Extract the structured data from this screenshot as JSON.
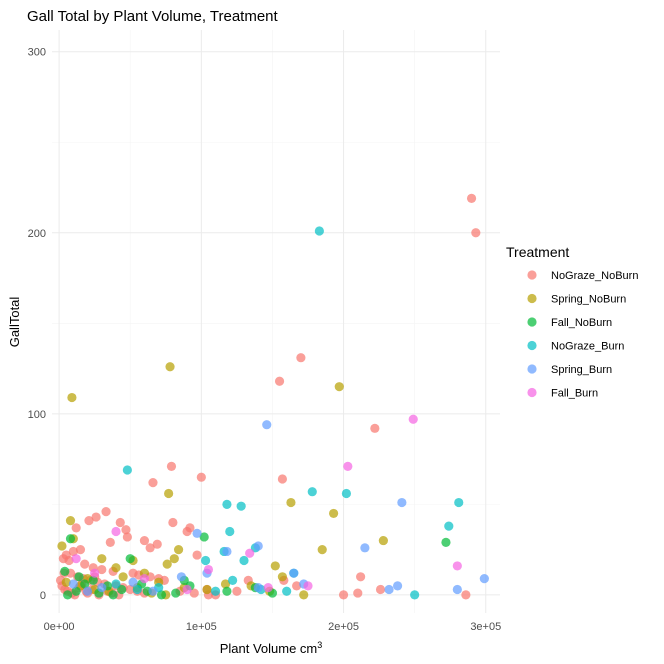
{
  "chart_data": {
    "type": "scatter",
    "title": "Gall Total by Plant Volume, Treatment",
    "xlabel": "Plant Volume cm",
    "xlabel_superscript": "3",
    "ylabel": "GallTotal",
    "xlim": [
      -5000,
      310000
    ],
    "ylim": [
      -10,
      312
    ],
    "x_ticks": [
      0,
      100000,
      200000,
      300000
    ],
    "x_tick_labels": [
      "0e+00",
      "1e+05",
      "2e+05",
      "3e+05"
    ],
    "y_ticks": [
      0,
      100,
      200,
      300
    ],
    "y_tick_labels": [
      "0",
      "100",
      "200",
      "300"
    ],
    "grid": true,
    "legend": {
      "title": "Treatment",
      "position": "right"
    },
    "series": [
      {
        "name": "NoGraze_NoBurn",
        "color": "#F8766D",
        "points": [
          [
            290000,
            219
          ],
          [
            293000,
            200
          ],
          [
            170000,
            131
          ],
          [
            155000,
            118
          ],
          [
            222000,
            92
          ],
          [
            79000,
            71
          ],
          [
            100000,
            65
          ],
          [
            157000,
            64
          ],
          [
            66000,
            62
          ],
          [
            33000,
            46
          ],
          [
            43000,
            40
          ],
          [
            47000,
            36
          ],
          [
            80000,
            40
          ],
          [
            90000,
            35
          ],
          [
            92000,
            37
          ],
          [
            26000,
            43
          ],
          [
            21000,
            41
          ],
          [
            12000,
            37
          ],
          [
            48000,
            32
          ],
          [
            60000,
            30
          ],
          [
            36000,
            29
          ],
          [
            15000,
            25
          ],
          [
            10000,
            24
          ],
          [
            5000,
            22
          ],
          [
            3000,
            20
          ],
          [
            7000,
            19
          ],
          [
            18000,
            17
          ],
          [
            24000,
            15
          ],
          [
            30000,
            14
          ],
          [
            38000,
            13
          ],
          [
            52000,
            12
          ],
          [
            56000,
            11
          ],
          [
            64000,
            10
          ],
          [
            70000,
            9
          ],
          [
            74000,
            8
          ],
          [
            8000,
            12
          ],
          [
            13000,
            10
          ],
          [
            17000,
            9
          ],
          [
            22000,
            8
          ],
          [
            27000,
            7
          ],
          [
            32000,
            6
          ],
          [
            40000,
            5
          ],
          [
            45000,
            4
          ],
          [
            50000,
            3
          ],
          [
            55000,
            2
          ],
          [
            60000,
            1
          ],
          [
            2000,
            5
          ],
          [
            4000,
            3
          ],
          [
            6000,
            2
          ],
          [
            9000,
            1
          ],
          [
            11000,
            0
          ],
          [
            14000,
            4
          ],
          [
            16000,
            6
          ],
          [
            19000,
            2
          ],
          [
            20000,
            1
          ],
          [
            23000,
            3
          ],
          [
            28000,
            0
          ],
          [
            34000,
            2
          ],
          [
            37000,
            1
          ],
          [
            42000,
            0
          ],
          [
            85000,
            2
          ],
          [
            95000,
            1
          ],
          [
            104000,
            3
          ],
          [
            110000,
            0
          ],
          [
            125000,
            2
          ],
          [
            133000,
            8
          ],
          [
            158000,
            8
          ],
          [
            167000,
            5
          ],
          [
            200000,
            0
          ],
          [
            212000,
            10
          ],
          [
            210000,
            1
          ],
          [
            226000,
            3
          ],
          [
            286000,
            0
          ],
          [
            64000,
            26
          ],
          [
            69000,
            28
          ],
          [
            97000,
            22
          ],
          [
            105000,
            0
          ],
          [
            1000,
            8
          ],
          [
            3500,
            12
          ],
          [
            25000,
            10
          ]
        ]
      },
      {
        "name": "Spring_NoBurn",
        "color": "#B79F00",
        "points": [
          [
            9000,
            109
          ],
          [
            78000,
            126
          ],
          [
            197000,
            115
          ],
          [
            77000,
            56
          ],
          [
            193000,
            45
          ],
          [
            163000,
            51
          ],
          [
            185000,
            25
          ],
          [
            228000,
            30
          ],
          [
            10000,
            31
          ],
          [
            8000,
            41
          ],
          [
            81000,
            20
          ],
          [
            84000,
            25
          ],
          [
            76000,
            17
          ],
          [
            152000,
            16
          ],
          [
            157000,
            10
          ],
          [
            2000,
            27
          ],
          [
            52000,
            19
          ],
          [
            60000,
            12
          ],
          [
            70000,
            7
          ],
          [
            88000,
            4
          ],
          [
            104000,
            3
          ],
          [
            117000,
            6
          ],
          [
            135000,
            5
          ],
          [
            148000,
            2
          ],
          [
            172000,
            0
          ],
          [
            30000,
            20
          ],
          [
            40000,
            15
          ],
          [
            45000,
            10
          ],
          [
            20000,
            9
          ],
          [
            5000,
            7
          ],
          [
            15000,
            5
          ],
          [
            25000,
            3
          ],
          [
            35000,
            2
          ],
          [
            55000,
            4
          ],
          [
            65000,
            1
          ],
          [
            75000,
            0
          ]
        ]
      },
      {
        "name": "Fall_NoBurn",
        "color": "#00BA38",
        "points": [
          [
            272000,
            29
          ],
          [
            102000,
            32
          ],
          [
            8000,
            31
          ],
          [
            50000,
            20
          ],
          [
            4000,
            13
          ],
          [
            14000,
            10
          ],
          [
            24000,
            8
          ],
          [
            34000,
            5
          ],
          [
            44000,
            3
          ],
          [
            62000,
            2
          ],
          [
            82000,
            1
          ],
          [
            92000,
            5
          ],
          [
            118000,
            2
          ],
          [
            138000,
            4
          ],
          [
            150000,
            1
          ],
          [
            6000,
            0
          ],
          [
            12000,
            2
          ],
          [
            18000,
            6
          ],
          [
            28000,
            1
          ],
          [
            38000,
            0
          ],
          [
            58000,
            6
          ],
          [
            72000,
            0
          ],
          [
            88000,
            8
          ]
        ]
      },
      {
        "name": "NoGraze_Burn",
        "color": "#00BFC4",
        "points": [
          [
            183000,
            201
          ],
          [
            48000,
            69
          ],
          [
            178000,
            57
          ],
          [
            202000,
            56
          ],
          [
            118000,
            50
          ],
          [
            128000,
            49
          ],
          [
            281000,
            51
          ],
          [
            274000,
            38
          ],
          [
            120000,
            35
          ],
          [
            116000,
            24
          ],
          [
            130000,
            19
          ],
          [
            138000,
            26
          ],
          [
            122000,
            8
          ],
          [
            142000,
            3
          ],
          [
            160000,
            2
          ],
          [
            165000,
            12
          ],
          [
            103000,
            19
          ],
          [
            110000,
            2
          ],
          [
            250000,
            0
          ],
          [
            40000,
            6
          ],
          [
            55000,
            3
          ],
          [
            70000,
            4
          ]
        ]
      },
      {
        "name": "Spring_Burn",
        "color": "#619CFF",
        "points": [
          [
            146000,
            94
          ],
          [
            241000,
            51
          ],
          [
            97000,
            34
          ],
          [
            140000,
            27
          ],
          [
            118000,
            24
          ],
          [
            215000,
            26
          ],
          [
            104000,
            12
          ],
          [
            165000,
            12
          ],
          [
            299000,
            9
          ],
          [
            238000,
            5
          ],
          [
            232000,
            3
          ],
          [
            280000,
            3
          ],
          [
            140000,
            4
          ],
          [
            172000,
            6
          ],
          [
            86000,
            10
          ],
          [
            66000,
            2
          ],
          [
            52000,
            7
          ],
          [
            30000,
            4
          ],
          [
            20000,
            2
          ],
          [
            10000,
            6
          ]
        ]
      },
      {
        "name": "Fall_Burn",
        "color": "#F564E3",
        "points": [
          [
            249000,
            97
          ],
          [
            203000,
            71
          ],
          [
            40000,
            35
          ],
          [
            134000,
            23
          ],
          [
            105000,
            14
          ],
          [
            280000,
            16
          ],
          [
            147000,
            4
          ],
          [
            175000,
            5
          ],
          [
            60000,
            9
          ],
          [
            25000,
            12
          ],
          [
            12000,
            20
          ],
          [
            90000,
            3
          ]
        ]
      }
    ]
  }
}
